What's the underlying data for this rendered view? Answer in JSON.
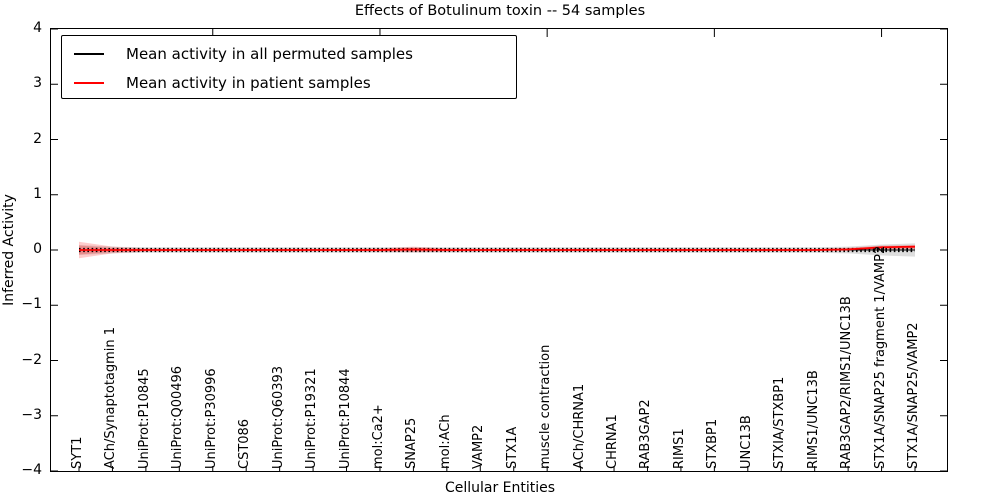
{
  "window": {
    "title": "Effects of Botulinum toxin -- 54 samples"
  },
  "chart_data": {
    "type": "line",
    "title": "Effects of Botulinum toxin -- 54 samples",
    "xlabel": "Cellular Entities",
    "ylabel": "Inferred Activity",
    "ylim": [
      -4,
      4
    ],
    "yticks": [
      4,
      3,
      2,
      1,
      0,
      -1,
      -2,
      -3,
      -4
    ],
    "yticklabels": [
      "4",
      "3",
      "2",
      "1",
      "0",
      "−1",
      "−2",
      "−3",
      "−4"
    ],
    "grid": false,
    "legend_position": "upper left",
    "categories": [
      "SYT1",
      "ACh/Synaptotagmin 1",
      "UniProt:P10845",
      "UniProt:Q00496",
      "UniProt:P30996",
      "CST086",
      "UniProt:Q60393",
      "UniProt:P19321",
      "UniProt:P10844",
      "mol:Ca2+",
      "SNAP25",
      "mol:ACh",
      "VAMP2",
      "STX1A",
      "muscle contraction",
      "ACh/CHRNA1",
      "CHRNA1",
      "RAB3GAP2",
      "RIMS1",
      "STXBP1",
      "UNC13B",
      "STXIA/STXBP1",
      "RIMS1/UNC13B",
      "RAB3GAP2/RIMS1/UNC13B",
      "STX1A/SNAP25 fragment 1/VAMP2",
      "STX1A/SNAP25/VAMP2"
    ],
    "xticks_top": [
      5,
      10,
      15,
      20,
      25
    ],
    "series": [
      {
        "name": "Mean activity in all permuted samples",
        "color": "#000000",
        "style": "dotted-markers",
        "values": [
          0,
          0,
          0,
          0,
          0,
          0,
          0,
          0,
          0,
          0,
          0,
          0,
          0,
          0,
          0,
          0,
          0,
          0,
          0,
          0,
          0,
          0,
          0,
          0,
          0,
          0
        ]
      },
      {
        "name": "Mean activity in patient samples",
        "color": "#ff0000",
        "style": "solid",
        "values": [
          0,
          0,
          0,
          0,
          0,
          0,
          0,
          0,
          0,
          0,
          0.01,
          0,
          0,
          0,
          0,
          0,
          0,
          0,
          0,
          0,
          0,
          0,
          0,
          0.01,
          0.05,
          0.06
        ]
      }
    ],
    "bands": [
      {
        "name": "permuted samples spread",
        "color": "rgba(0,0,0,0.13)",
        "upper": [
          0.09,
          0.06,
          0.05,
          0.05,
          0.05,
          0.05,
          0.05,
          0.05,
          0.05,
          0.05,
          0.05,
          0.05,
          0.05,
          0.05,
          0.05,
          0.05,
          0.05,
          0.05,
          0.05,
          0.05,
          0.05,
          0.05,
          0.05,
          0.06,
          0.1,
          0.12
        ],
        "lower": [
          -0.09,
          -0.06,
          -0.05,
          -0.05,
          -0.05,
          -0.05,
          -0.05,
          -0.05,
          -0.05,
          -0.05,
          -0.05,
          -0.05,
          -0.05,
          -0.05,
          -0.05,
          -0.05,
          -0.05,
          -0.05,
          -0.05,
          -0.05,
          -0.05,
          -0.05,
          -0.05,
          -0.06,
          -0.1,
          -0.12
        ]
      },
      {
        "name": "patient samples spread",
        "color": "rgba(255,0,0,0.20)",
        "upper": [
          0.15,
          0.06,
          0.03,
          0.02,
          0.02,
          0.02,
          0.02,
          0.02,
          0.02,
          0.03,
          0.06,
          0.03,
          0.02,
          0.02,
          0.02,
          0.02,
          0.02,
          0.02,
          0.02,
          0.02,
          0.02,
          0.02,
          0.02,
          0.04,
          0.08,
          0.09
        ],
        "lower": [
          -0.15,
          -0.06,
          -0.03,
          -0.02,
          -0.02,
          -0.02,
          -0.02,
          -0.02,
          -0.02,
          -0.03,
          -0.04,
          -0.03,
          -0.02,
          -0.02,
          -0.02,
          -0.02,
          -0.02,
          -0.02,
          -0.02,
          -0.02,
          -0.02,
          -0.02,
          -0.02,
          -0.01,
          0.02,
          0.03
        ]
      }
    ]
  }
}
